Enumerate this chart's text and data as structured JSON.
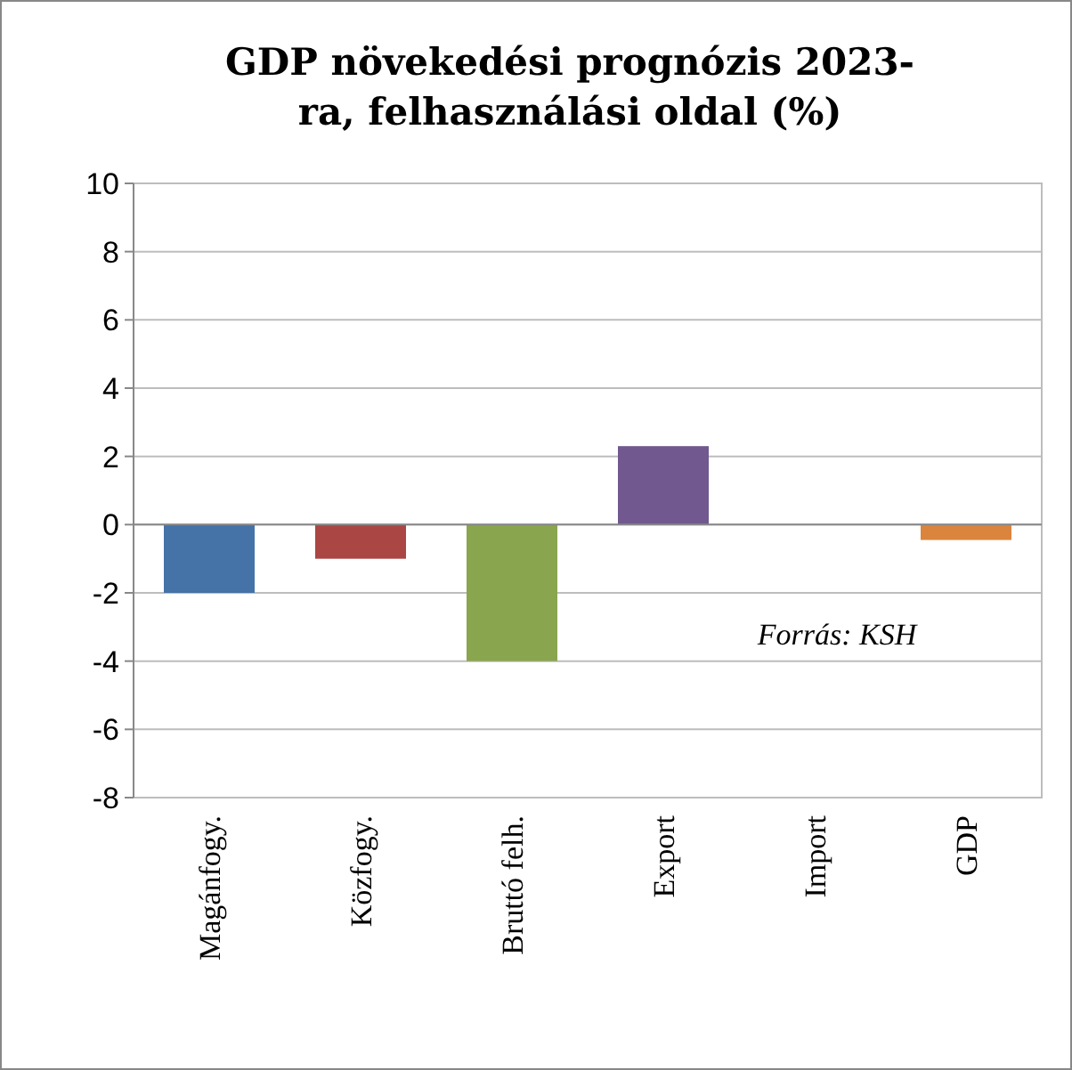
{
  "chart_data": {
    "type": "bar",
    "title": "GDP növekedési prognózis 2023-ra, felhasználási oldal (%)",
    "categories": [
      "Magánfogy.",
      "Közfogy.",
      "Bruttó felh.",
      "Export",
      "Import",
      "GDP"
    ],
    "values": [
      -2,
      -1,
      -4,
      2.3,
      0,
      -0.45
    ],
    "colors": [
      "#4572a7",
      "#aa4643",
      "#89a54e",
      "#71588f",
      "#4198af",
      "#db843d"
    ],
    "ylim": [
      -8,
      10
    ],
    "yticks": [
      -8,
      -6,
      -4,
      -2,
      0,
      2,
      4,
      6,
      8,
      10
    ],
    "grid": "y",
    "annotations": [
      {
        "text": "Forrás: KSH"
      }
    ]
  }
}
